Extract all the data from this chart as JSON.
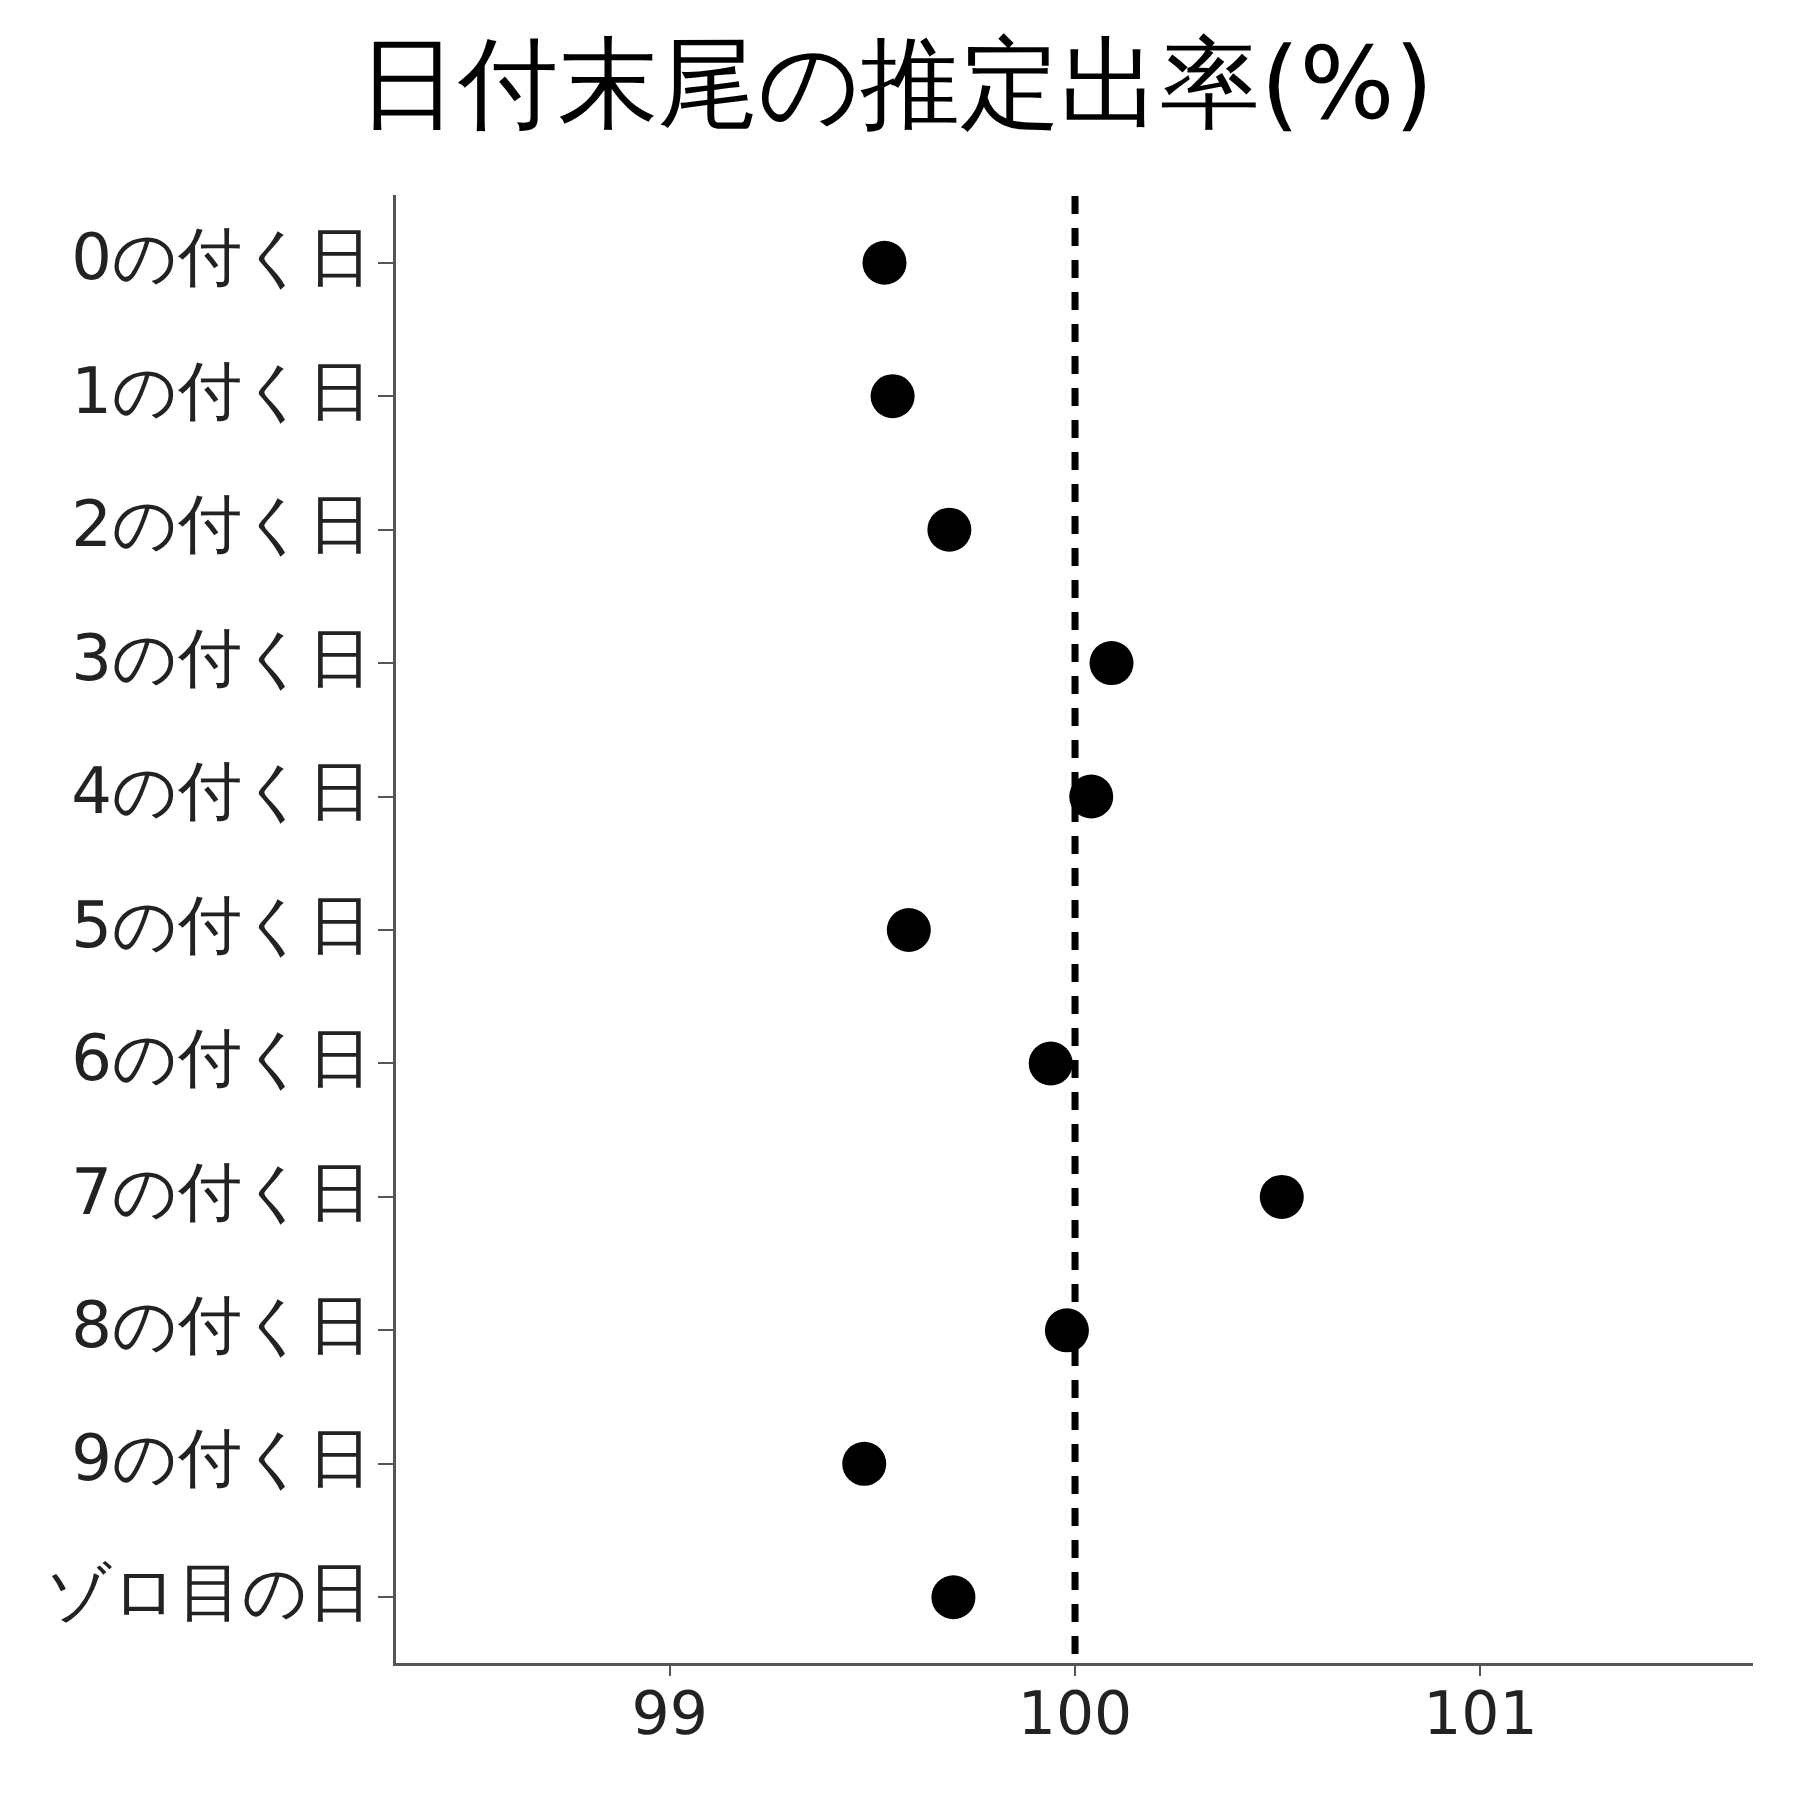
{
  "chart_data": {
    "type": "scatter",
    "title": "日付末尾の推定出率(%)",
    "categories": [
      "0の付く日",
      "1の付く日",
      "2の付く日",
      "3の付く日",
      "4の付く日",
      "5の付く日",
      "6の付く日",
      "7の付く日",
      "8の付く日",
      "9の付く日",
      "ゾロ目の日"
    ],
    "orientation": "horizontal",
    "values": [
      99.53,
      99.55,
      99.69,
      100.09,
      100.04,
      99.59,
      99.94,
      100.51,
      99.98,
      99.48,
      99.7
    ],
    "color": "#000000",
    "marker": "circle",
    "xlim": [
      98.32,
      101.67
    ],
    "xticks": [
      99,
      100,
      101
    ],
    "grid": false,
    "legend": false,
    "ref_lines": [
      {
        "axis": "x",
        "value": 100,
        "line_style": "dashed",
        "color": "#000000"
      }
    ]
  }
}
